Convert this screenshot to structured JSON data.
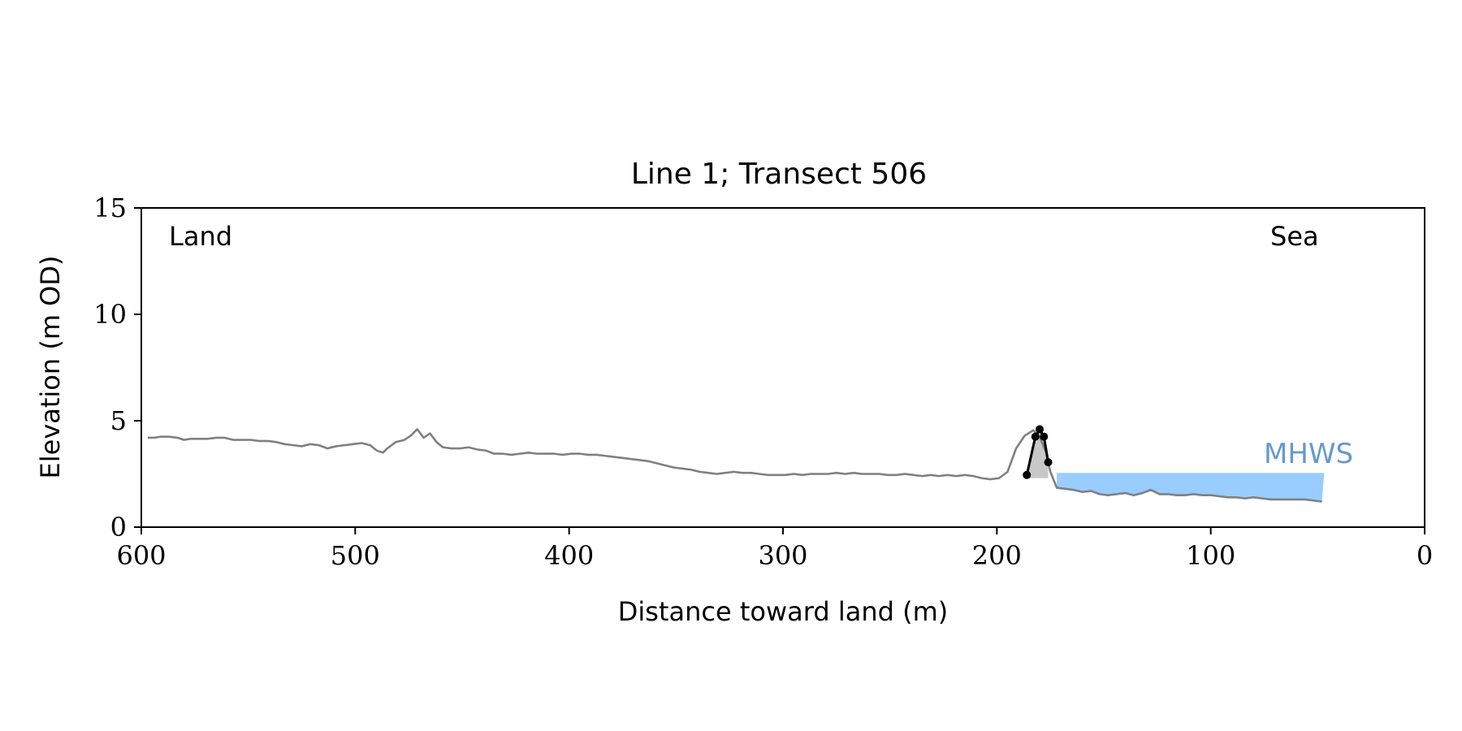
{
  "chart_data": {
    "type": "line",
    "title": "Line 1; Transect 506",
    "xlabel": "Distance toward land (m)",
    "ylabel": "Elevation (m OD)",
    "xlim": [
      600,
      0
    ],
    "ylim": [
      0,
      15
    ],
    "xticks": [
      "600",
      "500",
      "400",
      "300",
      "200",
      "100",
      "0"
    ],
    "yticks": [
      "0",
      "5",
      "10",
      "15"
    ],
    "grid": false,
    "annotations": {
      "land": "Land",
      "sea": "Sea",
      "mhws": "MHWS"
    },
    "colors": {
      "profile": "#808080",
      "dune": "#000000",
      "dune_fill": "#c8c8c8",
      "mhws_fill": "#99ccff",
      "mhws_text": "#6699cc"
    },
    "mhws": {
      "x_start": 172,
      "x_end": 47,
      "elevation": 2.55
    },
    "series": [
      {
        "x": [
          597,
          594,
          591,
          587,
          583,
          580,
          577,
          573,
          569,
          565,
          561,
          557,
          553,
          549,
          545,
          541,
          537,
          533,
          529,
          525,
          521,
          517,
          513,
          509,
          505,
          501,
          497,
          493,
          490,
          487,
          485,
          481,
          477,
          474,
          471,
          468,
          465,
          462,
          459,
          455,
          451,
          447,
          443,
          439,
          435,
          431,
          427,
          423,
          419,
          415,
          411,
          407,
          403,
          399,
          395,
          391,
          387,
          383,
          379,
          375,
          371,
          367,
          363,
          359,
          355,
          351,
          347,
          343,
          339,
          335,
          331,
          327,
          323,
          319,
          315,
          311,
          307,
          303,
          299,
          295,
          291,
          287,
          283,
          279,
          275,
          271,
          267,
          263,
          259,
          255,
          251,
          247,
          243,
          239,
          235,
          231,
          227,
          223,
          219,
          215,
          211,
          207,
          203,
          199,
          195,
          191,
          187,
          183,
          180,
          177,
          175,
          172,
          168,
          164,
          160,
          156,
          152,
          148,
          144,
          140,
          136,
          132,
          128,
          124,
          120,
          116,
          112,
          108,
          104,
          100,
          96,
          92,
          88,
          84,
          80,
          76,
          72,
          68,
          64,
          60,
          56,
          52,
          48
        ],
        "y": [
          4.2,
          4.2,
          4.25,
          4.25,
          4.2,
          4.1,
          4.15,
          4.15,
          4.15,
          4.2,
          4.2,
          4.1,
          4.1,
          4.1,
          4.05,
          4.05,
          4.0,
          3.9,
          3.85,
          3.8,
          3.9,
          3.85,
          3.7,
          3.8,
          3.85,
          3.9,
          3.95,
          3.85,
          3.6,
          3.5,
          3.7,
          4.0,
          4.1,
          4.3,
          4.6,
          4.2,
          4.4,
          4.0,
          3.75,
          3.7,
          3.7,
          3.75,
          3.65,
          3.6,
          3.45,
          3.45,
          3.4,
          3.45,
          3.5,
          3.45,
          3.45,
          3.45,
          3.4,
          3.45,
          3.45,
          3.4,
          3.4,
          3.35,
          3.3,
          3.25,
          3.2,
          3.15,
          3.1,
          3.0,
          2.9,
          2.8,
          2.75,
          2.7,
          2.6,
          2.55,
          2.5,
          2.55,
          2.6,
          2.55,
          2.55,
          2.5,
          2.45,
          2.45,
          2.45,
          2.5,
          2.45,
          2.5,
          2.5,
          2.5,
          2.55,
          2.5,
          2.55,
          2.5,
          2.5,
          2.5,
          2.45,
          2.45,
          2.5,
          2.45,
          2.4,
          2.45,
          2.4,
          2.45,
          2.4,
          2.45,
          2.4,
          2.3,
          2.25,
          2.3,
          2.6,
          3.7,
          4.3,
          4.55,
          4.25,
          3.5,
          2.6,
          1.85,
          1.8,
          1.75,
          1.65,
          1.7,
          1.55,
          1.5,
          1.55,
          1.6,
          1.5,
          1.6,
          1.75,
          1.55,
          1.55,
          1.5,
          1.5,
          1.55,
          1.5,
          1.5,
          1.45,
          1.4,
          1.4,
          1.35,
          1.4,
          1.35,
          1.3,
          1.3,
          1.3,
          1.3,
          1.3,
          1.25,
          1.2
        ]
      }
    ],
    "dune_points": {
      "x": [
        186,
        182,
        180,
        178,
        176
      ],
      "y": [
        2.45,
        4.25,
        4.6,
        4.25,
        3.05
      ]
    }
  }
}
